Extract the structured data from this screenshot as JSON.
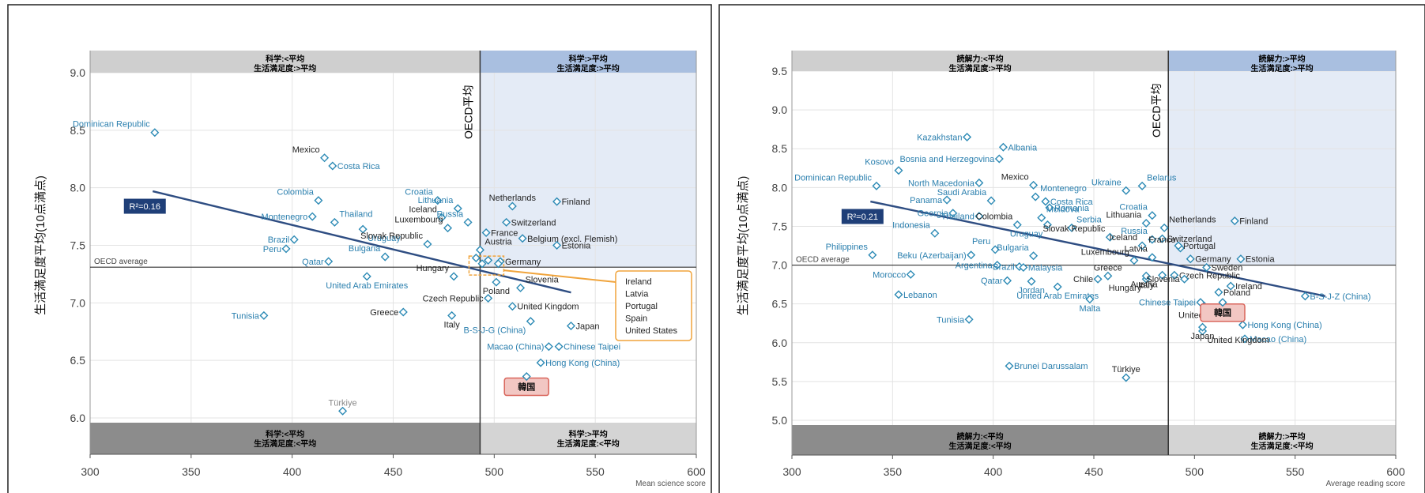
{
  "colors": {
    "top_left": "#cfcfcf",
    "top_right": "#a9bfe0",
    "top_right_bg": "#e4ebf6",
    "bottom_left": "#8c8c8c",
    "bottom_right": "#d4d4d4",
    "point": "#2c8ab5",
    "label_blue": "#2a7fae",
    "label_black": "#222222",
    "trend": "#2e4d82",
    "korea_box": "#f2c7c3",
    "korea_border": "#d9665c",
    "oecd_box": "#f0a43c"
  },
  "chart_data": [
    {
      "type": "scatter",
      "xlabel": "Mean science score",
      "ylabel": "生活満足度平均(10点満点)",
      "xlim": [
        300,
        600
      ],
      "ylim": [
        6.0,
        9.0
      ],
      "xticks": [
        "300",
        "350",
        "400",
        "450",
        "500",
        "550",
        "600"
      ],
      "yticks": [
        "6.0",
        "6.5",
        "7.0",
        "7.5",
        "8.0",
        "8.5",
        "9.0"
      ],
      "oecd_x": 493,
      "oecd_y": 7.31,
      "oecd_x_label": "OECD平均",
      "oecd_y_label": "OECD average",
      "r2_label": "R²=0.16",
      "trend": [
        [
          331,
          7.97
        ],
        [
          538,
          7.09
        ]
      ],
      "quadrants": {
        "top_left": [
          "科学:<平均",
          "生活満足度:>平均"
        ],
        "top_right": [
          "科学:>平均",
          "生活満足度:>平均"
        ],
        "bottom_left": [
          "科学:<平均",
          "生活満足度:<平均"
        ],
        "bottom_right": [
          "科学:>平均",
          "生活満足度:<平均"
        ]
      },
      "oecd_box_list": [
        "Ireland",
        "Latvia",
        "Portugal",
        "Spain",
        "United States"
      ],
      "korea_label": "韓国",
      "korea_point": [
        516,
        6.36
      ],
      "points": [
        {
          "name": "Dominican Republic",
          "x": 332,
          "y": 8.48,
          "c": "b",
          "lx": -1,
          "ly": 1
        },
        {
          "name": "Mexico",
          "x": 416,
          "y": 8.26,
          "c": "k",
          "lx": -1,
          "ly": 1
        },
        {
          "name": "Costa Rica",
          "x": 420,
          "y": 8.19,
          "c": "b",
          "lx": 1,
          "ly": 0
        },
        {
          "name": "Colombia",
          "x": 413,
          "y": 7.89,
          "c": "b",
          "lx": -1,
          "ly": 1
        },
        {
          "name": "Montenegro",
          "x": 410,
          "y": 7.75,
          "c": "b",
          "lx": -1,
          "ly": 0
        },
        {
          "name": "Thailand",
          "x": 421,
          "y": 7.7,
          "c": "b",
          "lx": 1,
          "ly": 1
        },
        {
          "name": "Uruguay",
          "x": 435,
          "y": 7.64,
          "c": "b",
          "lx": 1,
          "ly": 2
        },
        {
          "name": "Brazil",
          "x": 401,
          "y": 7.55,
          "c": "b",
          "lx": -1,
          "ly": 0
        },
        {
          "name": "Peru",
          "x": 397,
          "y": 7.47,
          "c": "b",
          "lx": -1,
          "ly": 0
        },
        {
          "name": "Qatar",
          "x": 418,
          "y": 7.36,
          "c": "b",
          "lx": -1,
          "ly": 0
        },
        {
          "name": "Bulgaria",
          "x": 446,
          "y": 7.4,
          "c": "b",
          "lx": -1,
          "ly": 1
        },
        {
          "name": "United Arab Emirates",
          "x": 437,
          "y": 7.23,
          "c": "b",
          "lx": 0,
          "ly": 2
        },
        {
          "name": "Croatia",
          "x": 472,
          "y": 7.89,
          "c": "b",
          "lx": -1,
          "ly": 1
        },
        {
          "name": "Lithuania",
          "x": 482,
          "y": 7.82,
          "c": "b",
          "lx": -1,
          "ly": 1
        },
        {
          "name": "Iceland",
          "x": 474,
          "y": 7.74,
          "c": "k",
          "lx": -1,
          "ly": 1
        },
        {
          "name": "Luxembourg",
          "x": 477,
          "y": 7.65,
          "c": "k",
          "lx": -1,
          "ly": 1
        },
        {
          "name": "Slovak Republic",
          "x": 467,
          "y": 7.51,
          "c": "k",
          "lx": -1,
          "ly": 1
        },
        {
          "name": "Russia",
          "x": 487,
          "y": 7.7,
          "c": "b",
          "lx": -1,
          "ly": 1
        },
        {
          "name": "Hungary",
          "x": 480,
          "y": 7.23,
          "c": "k",
          "lx": -1,
          "ly": 1
        },
        {
          "name": "Czech Republic",
          "x": 497,
          "y": 7.04,
          "c": "k",
          "lx": -1,
          "ly": 0
        },
        {
          "name": "Greece",
          "x": 455,
          "y": 6.92,
          "c": "k",
          "lx": -1,
          "ly": 0
        },
        {
          "name": "Italy",
          "x": 479,
          "y": 6.89,
          "c": "k",
          "lx": 0,
          "ly": 2
        },
        {
          "name": "Tunisia",
          "x": 386,
          "y": 6.89,
          "c": "b",
          "lx": -1,
          "ly": 0
        },
        {
          "name": "Türkiye",
          "x": 425,
          "y": 6.06,
          "c": "g",
          "lx": 0,
          "ly": 1
        },
        {
          "name": "Netherlands",
          "x": 509,
          "y": 7.84,
          "c": "k",
          "lx": 0,
          "ly": 1
        },
        {
          "name": "Finland",
          "x": 531,
          "y": 7.88,
          "c": "k",
          "lx": 1,
          "ly": 0
        },
        {
          "name": "Switzerland",
          "x": 506,
          "y": 7.7,
          "c": "k",
          "lx": 1,
          "ly": 0
        },
        {
          "name": "France",
          "x": 496,
          "y": 7.61,
          "c": "k",
          "lx": 1,
          "ly": 0
        },
        {
          "name": "Belgium (excl. Flemish)",
          "x": 514,
          "y": 7.56,
          "c": "k",
          "lx": 1,
          "ly": 0
        },
        {
          "name": "Austria",
          "x": 493,
          "y": 7.46,
          "c": "k",
          "lx": 1,
          "ly": 1
        },
        {
          "name": "Estonia",
          "x": 531,
          "y": 7.5,
          "c": "k",
          "lx": 1,
          "ly": 0
        },
        {
          "name": "Germany",
          "x": 503,
          "y": 7.36,
          "c": "k",
          "lx": 1,
          "ly": 0
        },
        {
          "name": "Poland",
          "x": 501,
          "y": 7.18,
          "c": "k",
          "lx": 0,
          "ly": 2
        },
        {
          "name": "Slovenia",
          "x": 513,
          "y": 7.13,
          "c": "k",
          "lx": 1,
          "ly": 1
        },
        {
          "name": "United Kingdom",
          "x": 509,
          "y": 6.97,
          "c": "k",
          "lx": 1,
          "ly": 0
        },
        {
          "name": "B-S-J-G (China)",
          "x": 518,
          "y": 6.84,
          "c": "b",
          "lx": -1,
          "ly": 2
        },
        {
          "name": "Japan",
          "x": 538,
          "y": 6.8,
          "c": "k",
          "lx": 1,
          "ly": 0
        },
        {
          "name": "Macao (China)",
          "x": 527,
          "y": 6.62,
          "c": "b",
          "lx": -1,
          "ly": 0
        },
        {
          "name": "Chinese Taipei",
          "x": 532,
          "y": 6.62,
          "c": "b",
          "lx": 1,
          "ly": 0
        },
        {
          "name": "Hong Kong (China)",
          "x": 523,
          "y": 6.48,
          "c": "b",
          "lx": 1,
          "ly": 0
        },
        {
          "name": "",
          "x": 491,
          "y": 7.39,
          "c": "b",
          "lx": 0,
          "ly": 0
        },
        {
          "name": "",
          "x": 494,
          "y": 7.34,
          "c": "b",
          "lx": 0,
          "ly": 0
        },
        {
          "name": "",
          "x": 497,
          "y": 7.37,
          "c": "b",
          "lx": 0,
          "ly": 0
        },
        {
          "name": "",
          "x": 502,
          "y": 7.34,
          "c": "b",
          "lx": 0,
          "ly": 0
        }
      ]
    },
    {
      "type": "scatter",
      "xlabel": "Average reading score",
      "ylabel": "生活満足度平均(10点満点)",
      "xlim": [
        300,
        600
      ],
      "ylim": [
        5.0,
        9.5
      ],
      "xticks": [
        "300",
        "350",
        "400",
        "450",
        "500",
        "550",
        "600"
      ],
      "yticks": [
        "5.0",
        "5.5",
        "6.0",
        "6.5",
        "7.0",
        "7.5",
        "8.0",
        "8.5",
        "9.0",
        "9.5"
      ],
      "oecd_x": 487,
      "oecd_y": 7.0,
      "oecd_x_label": "OECD平均",
      "oecd_y_label": "OECD average",
      "r2_label": "R²=0.21",
      "trend": [
        [
          339,
          7.82
        ],
        [
          565,
          6.6
        ]
      ],
      "quadrants": {
        "top_left": [
          "読解力:<平均",
          "生活満足度:>平均"
        ],
        "top_right": [
          "読解力:>平均",
          "生活満足度:>平均"
        ],
        "bottom_left": [
          "読解力:<平均",
          "生活満足度:<平均"
        ],
        "bottom_right": [
          "読解力:>平均",
          "生活満足度:<平均"
        ]
      },
      "korea_label": "韓国",
      "korea_point": [
        514,
        6.52
      ],
      "points": [
        {
          "name": "Kazakhstan",
          "x": 387,
          "y": 8.65,
          "c": "b",
          "lx": -1,
          "ly": 0
        },
        {
          "name": "Albania",
          "x": 405,
          "y": 8.52,
          "c": "b",
          "lx": 1,
          "ly": 0
        },
        {
          "name": "Bosnia and Herzegovina",
          "x": 403,
          "y": 8.37,
          "c": "b",
          "lx": -1,
          "ly": 0
        },
        {
          "name": "Kosovo",
          "x": 353,
          "y": 8.22,
          "c": "b",
          "lx": -1,
          "ly": 1
        },
        {
          "name": "North Macedonia",
          "x": 393,
          "y": 8.06,
          "c": "b",
          "lx": -1,
          "ly": 0
        },
        {
          "name": "Dominican Republic",
          "x": 342,
          "y": 8.02,
          "c": "b",
          "lx": -1,
          "ly": 1
        },
        {
          "name": "Mexico",
          "x": 420,
          "y": 8.03,
          "c": "k",
          "lx": -1,
          "ly": 1
        },
        {
          "name": "Montenegro",
          "x": 421,
          "y": 7.88,
          "c": "b",
          "lx": 1,
          "ly": 1
        },
        {
          "name": "Ukraine",
          "x": 466,
          "y": 7.96,
          "c": "b",
          "lx": -1,
          "ly": 1
        },
        {
          "name": "Belarus",
          "x": 474,
          "y": 8.02,
          "c": "b",
          "lx": 1,
          "ly": 1
        },
        {
          "name": "Saudi Arabia",
          "x": 399,
          "y": 7.83,
          "c": "b",
          "lx": -1,
          "ly": 1
        },
        {
          "name": "Panama",
          "x": 377,
          "y": 7.84,
          "c": "b",
          "lx": -1,
          "ly": 0
        },
        {
          "name": "Costa Rica",
          "x": 426,
          "y": 7.82,
          "c": "b",
          "lx": 1,
          "ly": 0
        },
        {
          "name": "Romania",
          "x": 428,
          "y": 7.74,
          "c": "b",
          "lx": 1,
          "ly": 0
        },
        {
          "name": "Moldova",
          "x": 424,
          "y": 7.61,
          "c": "b",
          "lx": 1,
          "ly": 1
        },
        {
          "name": "Georgia",
          "x": 380,
          "y": 7.67,
          "c": "b",
          "lx": -1,
          "ly": 0
        },
        {
          "name": "Thailand",
          "x": 393,
          "y": 7.63,
          "c": "b",
          "lx": -1,
          "ly": 0
        },
        {
          "name": "Indonesia",
          "x": 371,
          "y": 7.41,
          "c": "b",
          "lx": -1,
          "ly": 1
        },
        {
          "name": "Colombia",
          "x": 412,
          "y": 7.52,
          "c": "k",
          "lx": -1,
          "ly": 1
        },
        {
          "name": "Uruguay",
          "x": 427,
          "y": 7.52,
          "c": "b",
          "lx": -1,
          "ly": 2
        },
        {
          "name": "Croatia",
          "x": 479,
          "y": 7.64,
          "c": "b",
          "lx": -1,
          "ly": 1
        },
        {
          "name": "Lithuania",
          "x": 476,
          "y": 7.54,
          "c": "k",
          "lx": -1,
          "ly": 1
        },
        {
          "name": "Serbia",
          "x": 439,
          "y": 7.48,
          "c": "b",
          "lx": 1,
          "ly": 1
        },
        {
          "name": "Russia",
          "x": 479,
          "y": 7.33,
          "c": "b",
          "lx": -1,
          "ly": 1
        },
        {
          "name": "Slovak Republic",
          "x": 458,
          "y": 7.36,
          "c": "k",
          "lx": -1,
          "ly": 1
        },
        {
          "name": "Iceland",
          "x": 474,
          "y": 7.25,
          "c": "k",
          "lx": -1,
          "ly": 1
        },
        {
          "name": "Peru",
          "x": 401,
          "y": 7.2,
          "c": "b",
          "lx": -1,
          "ly": 1
        },
        {
          "name": "Bulgaria",
          "x": 420,
          "y": 7.12,
          "c": "b",
          "lx": -1,
          "ly": 1
        },
        {
          "name": "Philippines",
          "x": 340,
          "y": 7.13,
          "c": "b",
          "lx": -1,
          "ly": 1
        },
        {
          "name": "Beku (Azerbaijan)",
          "x": 389,
          "y": 7.13,
          "c": "b",
          "lx": -1,
          "ly": 0
        },
        {
          "name": "Argentina",
          "x": 402,
          "y": 7.0,
          "c": "b",
          "lx": -1,
          "ly": 0
        },
        {
          "name": "Brazil",
          "x": 413,
          "y": 6.98,
          "c": "b",
          "lx": -1,
          "ly": 0
        },
        {
          "name": "Malaysia",
          "x": 415,
          "y": 6.97,
          "c": "b",
          "lx": 1,
          "ly": 0
        },
        {
          "name": "Luxembourg",
          "x": 470,
          "y": 7.06,
          "c": "k",
          "lx": -1,
          "ly": 1
        },
        {
          "name": "Latvia",
          "x": 479,
          "y": 7.1,
          "c": "k",
          "lx": -1,
          "ly": 1
        },
        {
          "name": "Morocco",
          "x": 359,
          "y": 6.88,
          "c": "b",
          "lx": -1,
          "ly": 0
        },
        {
          "name": "Qatar",
          "x": 407,
          "y": 6.8,
          "c": "b",
          "lx": -1,
          "ly": 0
        },
        {
          "name": "Jordan",
          "x": 419,
          "y": 6.79,
          "c": "b",
          "lx": 0,
          "ly": 2
        },
        {
          "name": "Chile",
          "x": 452,
          "y": 6.82,
          "c": "k",
          "lx": -1,
          "ly": 0
        },
        {
          "name": "Greece",
          "x": 457,
          "y": 6.86,
          "c": "k",
          "lx": 0,
          "ly": 1
        },
        {
          "name": "Hungary",
          "x": 476,
          "y": 6.82,
          "c": "k",
          "lx": -1,
          "ly": 2
        },
        {
          "name": "Italy",
          "x": 476,
          "y": 6.86,
          "c": "k",
          "lx": 0,
          "ly": 2
        },
        {
          "name": "Austria",
          "x": 484,
          "y": 6.87,
          "c": "k",
          "lx": -1,
          "ly": 2
        },
        {
          "name": "United Arab Emirates",
          "x": 432,
          "y": 6.72,
          "c": "b",
          "lx": 0,
          "ly": 2
        },
        {
          "name": "Malta",
          "x": 448,
          "y": 6.56,
          "c": "b",
          "lx": 0,
          "ly": 2
        },
        {
          "name": "Lebanon",
          "x": 353,
          "y": 6.62,
          "c": "b",
          "lx": 1,
          "ly": 0
        },
        {
          "name": "Tunisia",
          "x": 388,
          "y": 6.3,
          "c": "b",
          "lx": -1,
          "ly": 0
        },
        {
          "name": "Chinese Taipei",
          "x": 503,
          "y": 6.52,
          "c": "b",
          "lx": -1,
          "ly": 0
        },
        {
          "name": "Netherlands",
          "x": 485,
          "y": 7.48,
          "c": "k",
          "lx": 1,
          "ly": 1
        },
        {
          "name": "Switzerland",
          "x": 484,
          "y": 7.34,
          "c": "k",
          "lx": 1,
          "ly": 0
        },
        {
          "name": "France",
          "x": 493,
          "y": 7.22,
          "c": "k",
          "lx": -1,
          "ly": 1
        },
        {
          "name": "Portugal",
          "x": 492,
          "y": 7.25,
          "c": "k",
          "lx": 1,
          "ly": 0
        },
        {
          "name": "Germany",
          "x": 498,
          "y": 7.08,
          "c": "k",
          "lx": 1,
          "ly": 0
        },
        {
          "name": "Estonia",
          "x": 523,
          "y": 7.08,
          "c": "k",
          "lx": 1,
          "ly": 0
        },
        {
          "name": "Finland",
          "x": 520,
          "y": 7.57,
          "c": "k",
          "lx": 1,
          "ly": 0
        },
        {
          "name": "Sweden",
          "x": 506,
          "y": 6.97,
          "c": "k",
          "lx": 1,
          "ly": 0
        },
        {
          "name": "Czech Republic",
          "x": 490,
          "y": 6.87,
          "c": "k",
          "lx": 1,
          "ly": 0
        },
        {
          "name": "Slovenia",
          "x": 495,
          "y": 6.82,
          "c": "k",
          "lx": -1,
          "ly": 0
        },
        {
          "name": "Ireland",
          "x": 518,
          "y": 6.73,
          "c": "k",
          "lx": 1,
          "ly": 0
        },
        {
          "name": "Poland",
          "x": 512,
          "y": 6.65,
          "c": "k",
          "lx": 1,
          "ly": 0
        },
        {
          "name": "B-S-J-Z (China)",
          "x": 555,
          "y": 6.6,
          "c": "b",
          "lx": 1,
          "ly": 0
        },
        {
          "name": "United States",
          "x": 505,
          "y": 6.47,
          "c": "k",
          "lx": 0,
          "ly": 2
        },
        {
          "name": "Hong Kong (China)",
          "x": 524,
          "y": 6.23,
          "c": "b",
          "lx": 1,
          "ly": 0
        },
        {
          "name": "Macao (China)",
          "x": 525,
          "y": 6.05,
          "c": "b",
          "lx": 1,
          "ly": 0
        },
        {
          "name": "United Kingdom",
          "x": 504,
          "y": 6.15,
          "c": "k",
          "lx": 1,
          "ly": 2
        },
        {
          "name": "Japan",
          "x": 504,
          "y": 6.2,
          "c": "k",
          "lx": 0,
          "ly": 2
        },
        {
          "name": "Brunei Darussalam",
          "x": 408,
          "y": 5.7,
          "c": "b",
          "lx": 1,
          "ly": 0
        },
        {
          "name": "Türkiye",
          "x": 466,
          "y": 5.55,
          "c": "k",
          "lx": 0,
          "ly": 1
        }
      ]
    }
  ]
}
